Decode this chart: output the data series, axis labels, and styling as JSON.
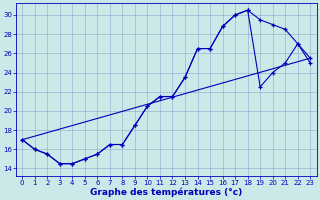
{
  "xlabel": "Graphe des températures (°c)",
  "background_color": "#cce8e8",
  "grid_color": "#88aacc",
  "line_color": "#0000bb",
  "xlim": [
    -0.5,
    23.5
  ],
  "ylim": [
    13.2,
    31.2
  ],
  "xticks": [
    0,
    1,
    2,
    3,
    4,
    5,
    6,
    7,
    8,
    9,
    10,
    11,
    12,
    13,
    14,
    15,
    16,
    17,
    18,
    19,
    20,
    21,
    22,
    23
  ],
  "yticks": [
    14,
    16,
    18,
    20,
    22,
    24,
    26,
    28,
    30
  ],
  "line1_x": [
    0,
    1,
    2,
    3,
    4,
    5,
    6,
    7,
    8,
    9,
    10,
    11,
    12,
    13,
    14,
    15,
    16,
    17,
    18,
    19,
    20,
    21,
    22,
    23
  ],
  "line1_y": [
    17.0,
    16.0,
    15.5,
    14.5,
    14.5,
    15.0,
    15.5,
    16.5,
    16.5,
    18.5,
    20.5,
    21.5,
    21.5,
    23.5,
    26.5,
    26.5,
    28.8,
    30.0,
    30.5,
    29.5,
    29.0,
    28.5,
    27.0,
    25.0
  ],
  "line2_x": [
    0,
    1,
    2,
    3,
    4,
    5,
    6,
    7,
    8,
    9,
    10,
    11,
    12,
    13,
    14,
    15,
    16,
    17,
    18,
    19,
    20,
    21,
    22,
    23
  ],
  "line2_y": [
    17.0,
    16.0,
    15.5,
    14.5,
    14.5,
    15.0,
    15.5,
    16.5,
    16.5,
    18.5,
    20.5,
    21.5,
    21.5,
    23.5,
    26.5,
    26.5,
    28.8,
    30.0,
    30.5,
    22.5,
    24.0,
    25.0,
    27.0,
    25.5
  ],
  "line3_x": [
    0,
    23
  ],
  "line3_y": [
    17.0,
    25.5
  ]
}
